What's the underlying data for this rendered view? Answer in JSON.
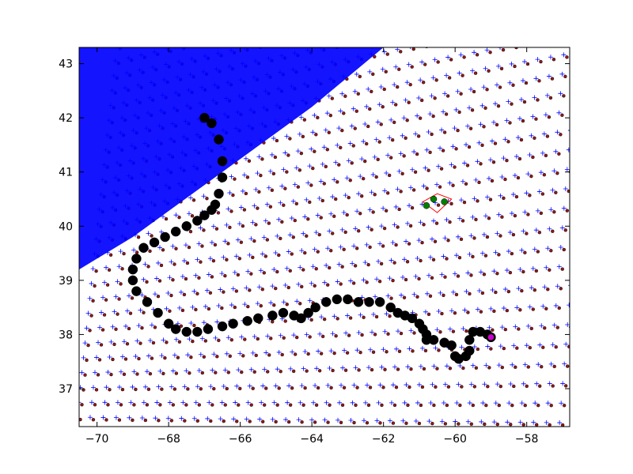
{
  "chart_data": {
    "type": "scatter",
    "title": "",
    "xlabel": "",
    "ylabel": "",
    "xlim": [
      -70.5,
      -56.8
    ],
    "ylim": [
      36.3,
      43.3
    ],
    "x_ticks": [
      -70,
      -68,
      -66,
      -64,
      -62,
      -60,
      -58
    ],
    "y_ticks": [
      37,
      38,
      39,
      40,
      41,
      42,
      43
    ],
    "x_tick_labels": [
      "−70",
      "−68",
      "−66",
      "−64",
      "−62",
      "−60",
      "−58"
    ],
    "y_tick_labels": [
      "37",
      "38",
      "39",
      "40",
      "41",
      "42",
      "43"
    ],
    "grid": false,
    "colors": {
      "grid_nodes": "#0000ff",
      "grid_centers": "#8b1a1a",
      "track": "#000000",
      "track_end": "#cc00cc",
      "cell_outline": "#ff0000",
      "cell_points": "#008000"
    },
    "series": [
      {
        "marker": "dense grid nodes (+)",
        "description_only": false
      },
      {
        "marker": "track (o)",
        "x": [
          -67.0,
          -66.8,
          -66.6,
          -66.5,
          -66.5,
          -66.6,
          -66.7,
          -66.8,
          -67.0,
          -67.2,
          -67.5,
          -67.8,
          -68.1,
          -68.4,
          -68.7,
          -68.9,
          -69.0,
          -69.0,
          -68.9,
          -68.6,
          -68.3,
          -68.0,
          -67.8,
          -67.5,
          -67.2,
          -66.9,
          -66.5,
          -66.2,
          -65.8,
          -65.5,
          -65.1,
          -64.8,
          -64.5,
          -64.3,
          -64.1,
          -63.9,
          -63.6,
          -63.3,
          -63.0,
          -62.7,
          -62.4,
          -62.1,
          -61.8,
          -61.6,
          -61.4,
          -61.2,
          -61.0,
          -60.9,
          -60.8,
          -60.8,
          -60.6,
          -60.3,
          -60.1,
          -60.0,
          -59.9,
          -59.7,
          -59.6,
          -59.6,
          -59.5,
          -59.3,
          -59.1,
          -59.0
        ],
        "y": [
          42.0,
          41.9,
          41.6,
          41.2,
          40.9,
          40.6,
          40.4,
          40.3,
          40.2,
          40.1,
          40.0,
          39.9,
          39.8,
          39.7,
          39.6,
          39.4,
          39.2,
          39.0,
          38.8,
          38.6,
          38.4,
          38.2,
          38.1,
          38.05,
          38.05,
          38.1,
          38.15,
          38.2,
          38.25,
          38.3,
          38.35,
          38.4,
          38.35,
          38.3,
          38.4,
          38.5,
          38.6,
          38.65,
          38.65,
          38.6,
          38.6,
          38.6,
          38.5,
          38.4,
          38.35,
          38.3,
          38.2,
          38.1,
          38.0,
          37.9,
          37.9,
          37.85,
          37.8,
          37.6,
          37.55,
          37.6,
          37.7,
          37.9,
          38.05,
          38.05,
          38.0,
          37.95
        ]
      }
    ],
    "annotations": [
      {
        "kind": "highlighted cell",
        "polygon_x": [
          -60.9,
          -60.5,
          -60.1,
          -60.5
        ],
        "polygon_y": [
          40.45,
          40.6,
          40.5,
          40.25
        ],
        "points_x": [
          -60.8,
          -60.6,
          -60.3
        ],
        "points_y": [
          40.38,
          40.5,
          40.45
        ]
      }
    ]
  }
}
